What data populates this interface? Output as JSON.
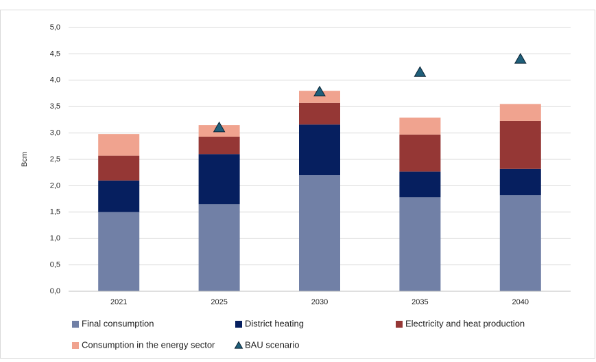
{
  "chart_data": {
    "type": "bar",
    "stacked": true,
    "y_label": "Bcm",
    "categories": [
      "2021",
      "2025",
      "2030",
      "2035",
      "2040"
    ],
    "series": [
      {
        "name": "Final consumption",
        "color": "#7180a6",
        "values": [
          1.5,
          1.65,
          2.2,
          1.78,
          1.82
        ]
      },
      {
        "name": "District heating",
        "color": "#061f5f",
        "values": [
          0.6,
          0.95,
          0.96,
          0.49,
          0.5
        ]
      },
      {
        "name": "Electricity and heat production",
        "color": "#953735",
        "values": [
          0.47,
          0.33,
          0.41,
          0.7,
          0.91
        ]
      },
      {
        "name": "Consumption in the energy sector",
        "color": "#f0a38f",
        "values": [
          0.41,
          0.22,
          0.23,
          0.32,
          0.32
        ]
      },
      {
        "name": "BAU scenario",
        "type": "scatter",
        "marker": "triangle",
        "color": "#1f5f7a",
        "values": [
          null,
          3.1,
          3.78,
          4.15,
          4.4
        ]
      }
    ],
    "ylim": [
      0,
      5
    ],
    "yticks": [
      {
        "value": 0,
        "label": "0,0"
      },
      {
        "value": 0.5,
        "label": "0,5"
      },
      {
        "value": 1,
        "label": "1,0"
      },
      {
        "value": 1.5,
        "label": "1,5"
      },
      {
        "value": 2,
        "label": "2,0"
      },
      {
        "value": 2.5,
        "label": "2,5"
      },
      {
        "value": 3,
        "label": "3,0"
      },
      {
        "value": 3.5,
        "label": "3,5"
      },
      {
        "value": 4,
        "label": "4,0"
      },
      {
        "value": 4.5,
        "label": "4,5"
      },
      {
        "value": 5,
        "label": "5,0"
      }
    ],
    "grid": true,
    "legend": "bottom"
  }
}
